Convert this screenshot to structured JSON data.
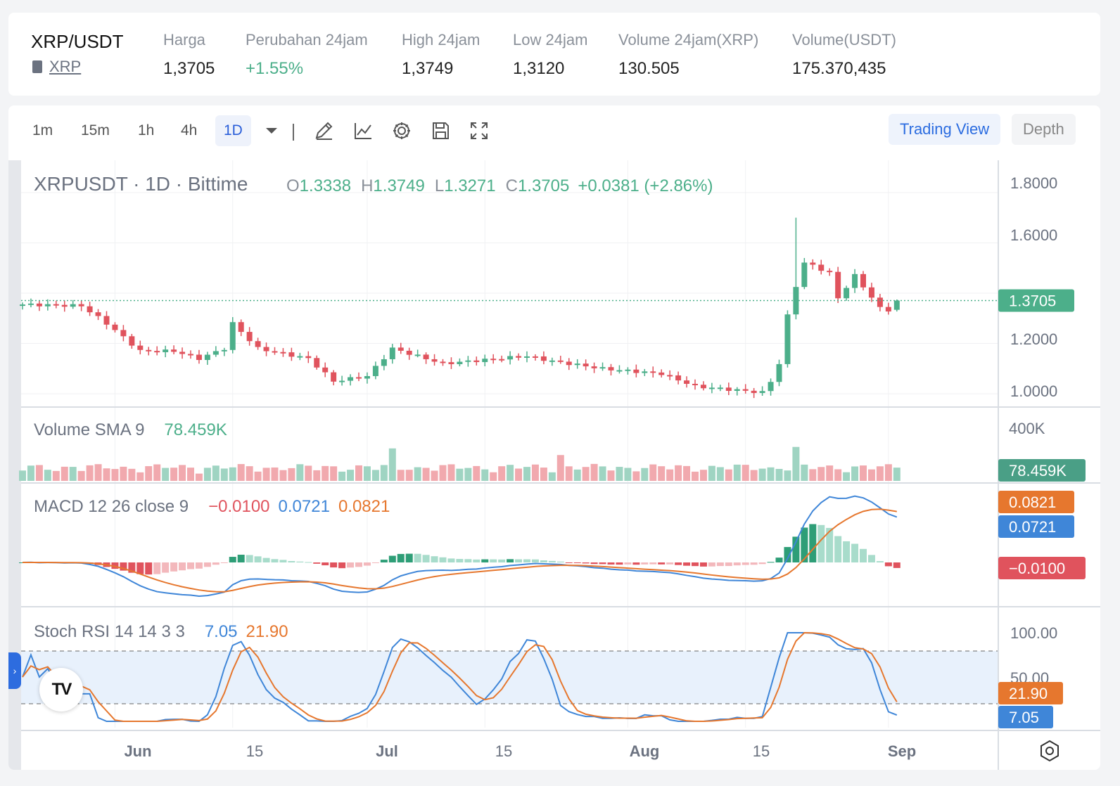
{
  "ticker": {
    "pair": "XRP/USDT",
    "base_link": "XRP",
    "stats": [
      {
        "label": "Harga",
        "value": "1,3705",
        "up": false
      },
      {
        "label": "Perubahan 24jam",
        "value": "+1.55%",
        "up": true
      },
      {
        "label": "High 24jam",
        "value": "1,3749",
        "up": false
      },
      {
        "label": "Low 24jam",
        "value": "1,3120",
        "up": false
      },
      {
        "label": "Volume 24jam(XRP)",
        "value": "130.505",
        "up": false
      },
      {
        "label": "Volume(USDT)",
        "value": "175.370,435",
        "up": false
      }
    ]
  },
  "toolbar": {
    "timeframes": [
      "1m",
      "15m",
      "1h",
      "4h",
      "1D"
    ],
    "active_timeframe": "1D",
    "tools": [
      "pencil-icon",
      "indicator-chart-icon",
      "gear-icon",
      "save-icon",
      "fullscreen-icon"
    ],
    "views": [
      "Trading View",
      "Depth"
    ],
    "active_view": "Trading View"
  },
  "chart_header": {
    "symbol": "XRPUSDT",
    "interval": "1D",
    "exchange": "Bittime",
    "o_label": "O",
    "o": "1.3338",
    "h_label": "H",
    "h": "1.3749",
    "l_label": "L",
    "l": "1.3271",
    "c_label": "C",
    "c": "1.3705",
    "change": "+0.0381 (+2.86%)"
  },
  "volume_header": {
    "label": "Volume SMA 9",
    "value": "78.459K"
  },
  "macd_header": {
    "label": "MACD 12 26 close 9",
    "hist": "−0.0100",
    "macd": "0.0721",
    "signal": "0.0821"
  },
  "stoch_header": {
    "label": "Stoch RSI 14 14 3 3",
    "k": "7.05",
    "d": "21.90"
  },
  "price_axis": [
    "1.8000",
    "1.6000",
    "1.2000",
    "1.0000"
  ],
  "price_badge": "1.3705",
  "volume_axis": [
    "400K"
  ],
  "volume_badge": "78.459K",
  "macd_badges": {
    "signal": "0.0821",
    "macd": "0.0721",
    "hist": "−0.0100"
  },
  "stoch_axis": [
    "100.00",
    "50.00"
  ],
  "stoch_badges": {
    "d": "21.90",
    "k": "7.05"
  },
  "time_axis": [
    "Jun",
    "15",
    "Jul",
    "15",
    "Aug",
    "15",
    "Sep"
  ],
  "colors": {
    "up": "#4caf8a",
    "down": "#e0535d",
    "macd": "#3f86d8",
    "signal": "#e6772e",
    "accent": "#2b6ce0"
  },
  "chart_data": [
    {
      "type": "candlestick",
      "title": "XRPUSDT · 1D · Bittime",
      "x_range": [
        "2024-05-21",
        "2024-09-02"
      ],
      "ylim": [
        0.95,
        1.85
      ],
      "anchors": [
        {
          "date": "2024-05-21",
          "close": 1.355
        },
        {
          "date": "2024-05-28",
          "close": 1.35
        },
        {
          "date": "2024-05-31",
          "close": 1.28
        },
        {
          "date": "2024-06-04",
          "close": 1.17
        },
        {
          "date": "2024-06-08",
          "close": 1.17
        },
        {
          "date": "2024-06-11",
          "close": 1.14
        },
        {
          "date": "2024-06-14",
          "close": 1.18
        },
        {
          "date": "2024-06-15",
          "close": 1.28
        },
        {
          "date": "2024-06-18",
          "close": 1.18
        },
        {
          "date": "2024-06-24",
          "close": 1.14
        },
        {
          "date": "2024-06-27",
          "close": 1.05
        },
        {
          "date": "2024-07-01",
          "close": 1.07
        },
        {
          "date": "2024-07-04",
          "close": 1.18
        },
        {
          "date": "2024-07-07",
          "close": 1.15
        },
        {
          "date": "2024-07-10",
          "close": 1.12
        },
        {
          "date": "2024-07-20",
          "close": 1.15
        },
        {
          "date": "2024-07-23",
          "close": 1.13
        },
        {
          "date": "2024-07-29",
          "close": 1.1
        },
        {
          "date": "2024-08-05",
          "close": 1.08
        },
        {
          "date": "2024-08-09",
          "close": 1.03
        },
        {
          "date": "2024-08-17",
          "close": 1.005
        },
        {
          "date": "2024-08-18",
          "close": 1.05
        },
        {
          "date": "2024-08-19",
          "close": 1.12
        },
        {
          "date": "2024-08-20",
          "close": 1.31
        },
        {
          "date": "2024-08-21",
          "close": 1.43
        },
        {
          "date": "2024-08-22",
          "close": 1.52
        },
        {
          "date": "2024-08-23",
          "close": 1.51
        },
        {
          "date": "2024-08-25",
          "close": 1.48
        },
        {
          "date": "2024-08-26",
          "close": 1.38
        },
        {
          "date": "2024-08-28",
          "close": 1.47
        },
        {
          "date": "2024-08-31",
          "close": 1.34
        },
        {
          "date": "2024-09-01",
          "close": 1.333
        },
        {
          "date": "2024-09-02",
          "close": 1.3705
        }
      ],
      "last_candle": {
        "open": 1.3338,
        "high": 1.3749,
        "low": 1.3271,
        "close": 1.3705
      },
      "spike_high": {
        "date": "2024-08-21",
        "high": 1.7
      }
    },
    {
      "type": "bar",
      "title": "Volume SMA 9",
      "ylim": [
        0,
        400000
      ],
      "last_sma": 78459,
      "peaks": [
        {
          "date": "2024-07-04",
          "volume": 220000
        },
        {
          "date": "2024-07-24",
          "volume": 175000
        },
        {
          "date": "2024-08-21",
          "volume": 230000
        }
      ]
    },
    {
      "type": "line",
      "title": "MACD 12 26 close 9",
      "last": {
        "macd": 0.0721,
        "signal": 0.0821,
        "histogram": -0.01
      }
    },
    {
      "type": "line",
      "title": "Stoch RSI 14 14 3 3",
      "ylim": [
        0,
        100
      ],
      "bands": [
        20,
        80
      ],
      "last": {
        "k": 7.05,
        "d": 21.9
      }
    }
  ]
}
